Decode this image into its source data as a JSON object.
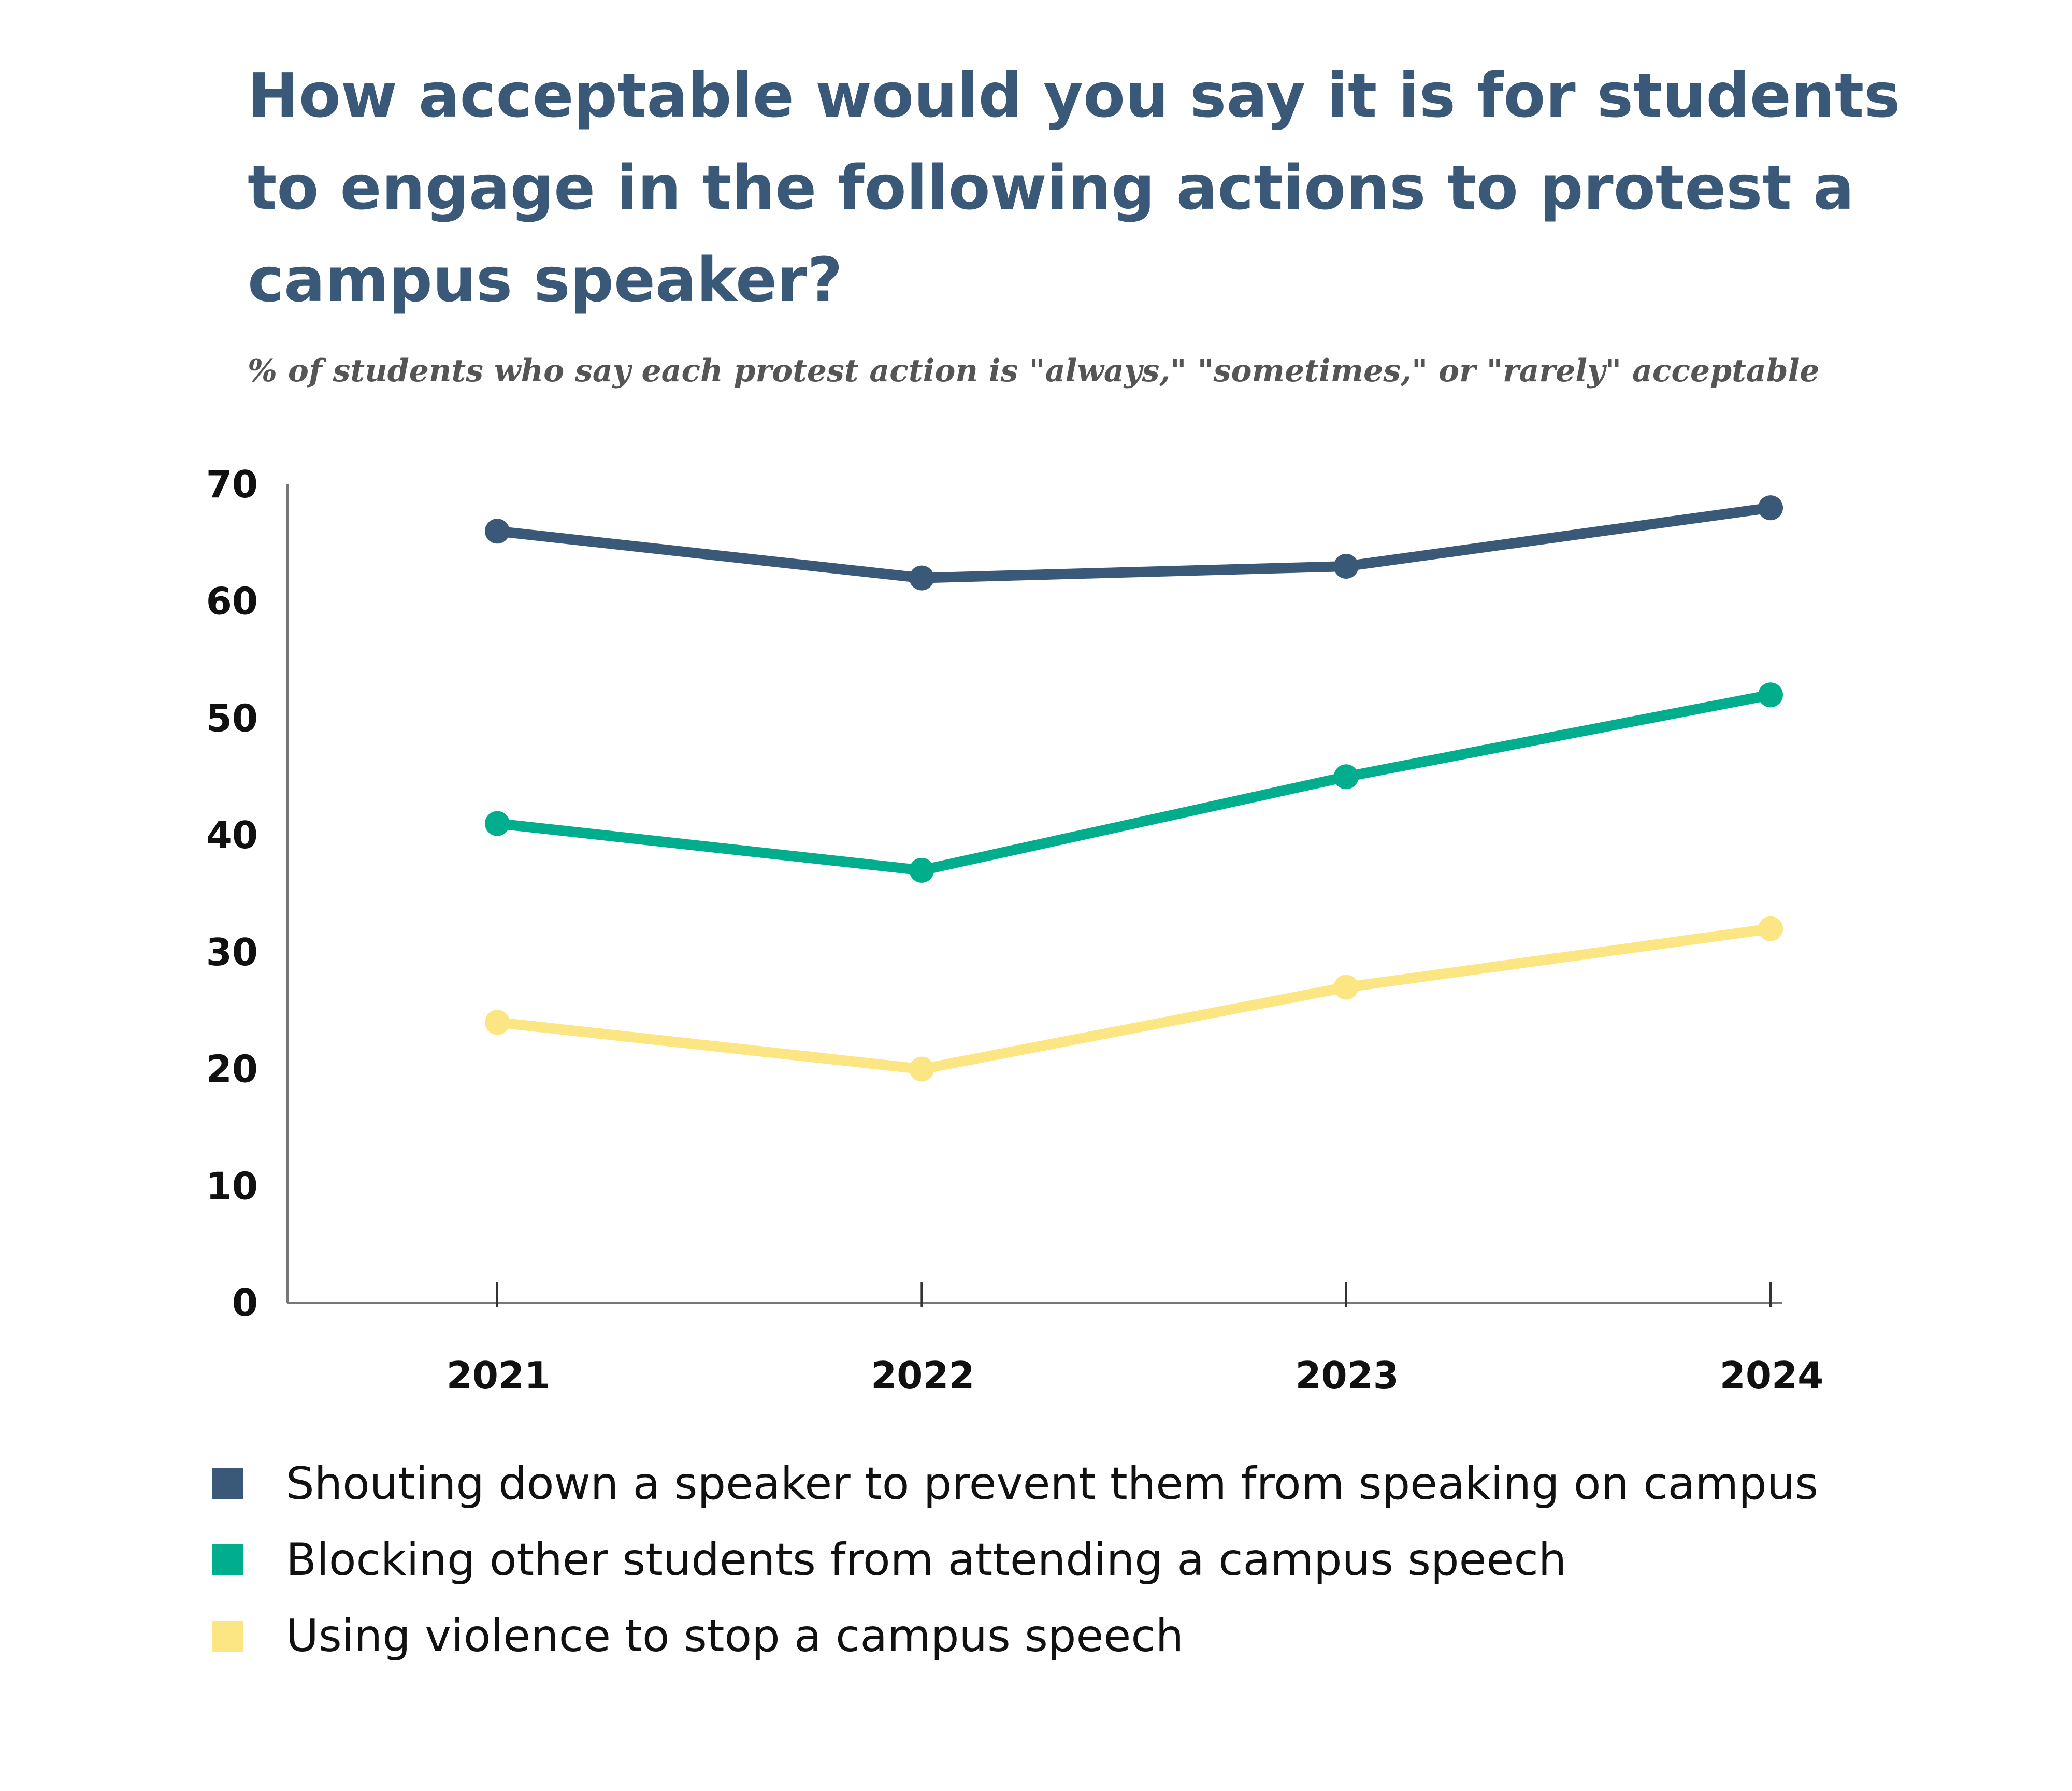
{
  "chart_data": {
    "type": "line",
    "title": "How acceptable would you say it is for students to engage in the following actions to protest a campus speaker?",
    "subtitle": "% of students who say each protest action is \"always,\" \"sometimes,\" or \"rarely\" acceptable",
    "xlabel": "",
    "ylabel": "",
    "x": [
      "2021",
      "2022",
      "2023",
      "2024"
    ],
    "ylim": [
      0,
      70
    ],
    "yticks": [
      "0",
      "10",
      "20",
      "30",
      "40",
      "50",
      "60",
      "70"
    ],
    "grid": false,
    "legend_position": "bottom",
    "series": [
      {
        "name": "Shouting down a speaker to prevent them from speaking on campus",
        "color": "#3a5978",
        "values": [
          66,
          62,
          63,
          68
        ]
      },
      {
        "name": "Blocking other students from attending a campus speech",
        "color": "#00ad8c",
        "values": [
          41,
          37,
          45,
          52
        ]
      },
      {
        "name": "Using violence to stop a campus speech",
        "color": "#fce583",
        "values": [
          24,
          20,
          27,
          32
        ]
      }
    ]
  }
}
